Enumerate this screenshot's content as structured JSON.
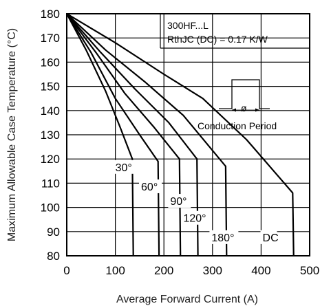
{
  "chart_data": {
    "type": "line",
    "title": "",
    "xlabel": "Average Forward Current (A)",
    "ylabel": "Maximum Allowable Case Temperature (°C)",
    "xlim": [
      0,
      500
    ],
    "ylim": [
      80,
      180
    ],
    "xticks": [
      0,
      100,
      200,
      300,
      400,
      500
    ],
    "yticks": [
      80,
      90,
      100,
      110,
      120,
      130,
      140,
      150,
      160,
      170,
      180
    ],
    "grid": true,
    "annotations": {
      "device": "300HF...L",
      "rth": "RthJC (DC) = 0.17 K/W",
      "conduction": "Conduction Period",
      "phi": "ø"
    },
    "series": [
      {
        "name": "30°",
        "points": [
          [
            0,
            180
          ],
          [
            40,
            165
          ],
          [
            80,
            148
          ],
          [
            110,
            133
          ],
          [
            135,
            120
          ],
          [
            137,
            80
          ]
        ]
      },
      {
        "name": "60°",
        "points": [
          [
            0,
            180
          ],
          [
            50,
            164
          ],
          [
            100,
            145
          ],
          [
            150,
            130
          ],
          [
            188,
            119
          ],
          [
            190,
            80
          ]
        ]
      },
      {
        "name": "90°",
        "points": [
          [
            0,
            180
          ],
          [
            60,
            164
          ],
          [
            120,
            147
          ],
          [
            180,
            133
          ],
          [
            232,
            120
          ],
          [
            234,
            80
          ]
        ]
      },
      {
        "name": "120°",
        "points": [
          [
            0,
            180
          ],
          [
            70,
            164
          ],
          [
            140,
            149
          ],
          [
            210,
            135
          ],
          [
            268,
            120
          ],
          [
            270,
            80
          ]
        ]
      },
      {
        "name": "180°",
        "points": [
          [
            0,
            180
          ],
          [
            80,
            165
          ],
          [
            160,
            152
          ],
          [
            240,
            138
          ],
          [
            327,
            117
          ],
          [
            329,
            80
          ]
        ]
      },
      {
        "name": "DC",
        "points": [
          [
            0,
            180
          ],
          [
            100,
            168
          ],
          [
            200,
            155
          ],
          [
            280,
            145
          ],
          [
            370,
            128
          ],
          [
            465,
            106
          ],
          [
            467,
            80
          ]
        ]
      }
    ],
    "labels": [
      {
        "text": "30°",
        "x": 100,
        "y": 115
      },
      {
        "text": "60°",
        "x": 153,
        "y": 107
      },
      {
        "text": "90°",
        "x": 213,
        "y": 101
      },
      {
        "text": "120°",
        "x": 240,
        "y": 94
      },
      {
        "text": "180°",
        "x": 298,
        "y": 86
      },
      {
        "text": "DC",
        "x": 403,
        "y": 86
      }
    ]
  }
}
